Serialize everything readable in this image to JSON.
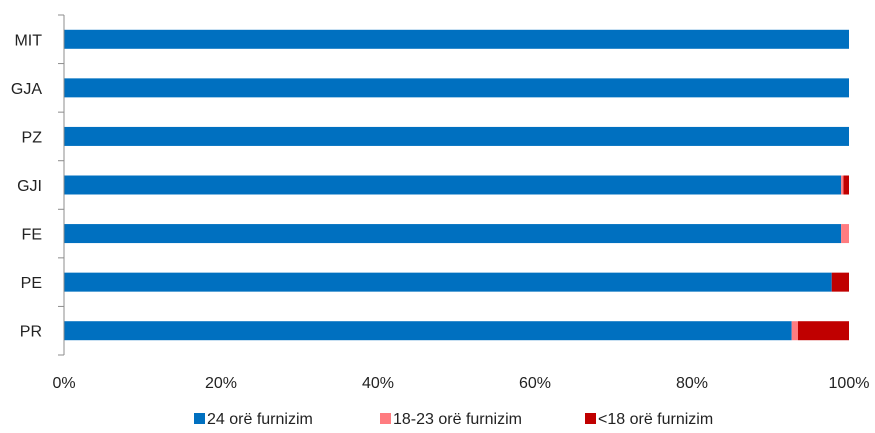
{
  "chart_data": {
    "type": "bar",
    "orientation": "horizontal",
    "stacked": true,
    "percent_stacked": true,
    "categories": [
      "MIT",
      "GJA",
      "PZ",
      "GJI",
      "FE",
      "PE",
      "PR"
    ],
    "series": [
      {
        "name": "24 orë furnizim",
        "color": "#0070C0",
        "values": [
          100,
          100,
          100,
          99.0,
          99.0,
          97.8,
          92.7
        ]
      },
      {
        "name": "18-23 orë furnizim",
        "color": "#FF7C80",
        "values": [
          0,
          0,
          0,
          0.3,
          1.0,
          0,
          0.8
        ]
      },
      {
        "name": "<18 orë furnizim",
        "color": "#C00000",
        "values": [
          0,
          0,
          0,
          0.7,
          0,
          2.2,
          6.5
        ]
      }
    ],
    "x_ticks": [
      "0%",
      "20%",
      "40%",
      "60%",
      "80%",
      "100%"
    ],
    "xlim": [
      0,
      100
    ],
    "grid": false,
    "legend_position": "bottom"
  }
}
